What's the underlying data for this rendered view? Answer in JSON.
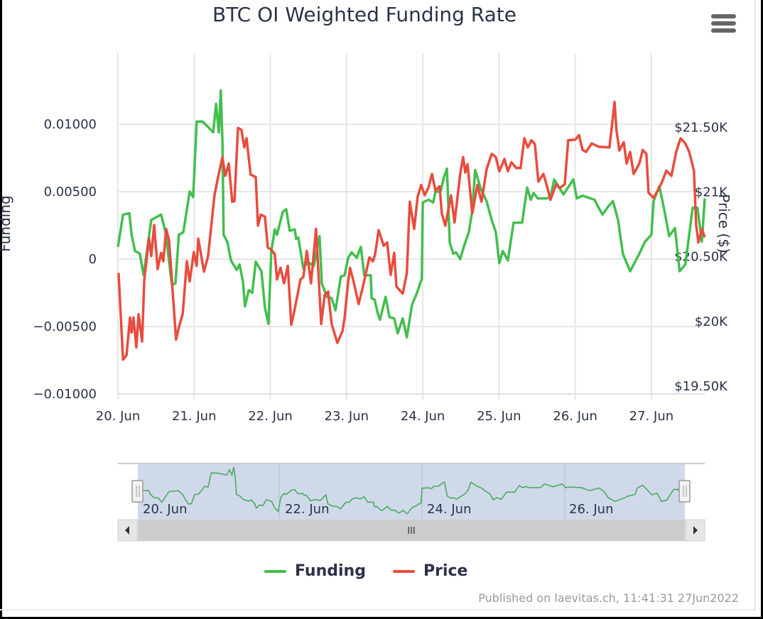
{
  "title": "BTC OI Weighted Funding Rate",
  "menu_icon": "hamburger-menu-icon",
  "credits": "Published on laevitas.ch, 11:41:31 27Jun2022",
  "legend": [
    {
      "label": "Funding",
      "color": "#43be4f"
    },
    {
      "label": "Price",
      "color": "#e84c3d"
    }
  ],
  "navigator": {
    "labels": [
      "20. Jun",
      "22. Jun",
      "24. Jun",
      "26. Jun"
    ],
    "scroll_grip": "III"
  },
  "chart_data": {
    "type": "line",
    "title": "BTC OI Weighted Funding Rate",
    "x_unit": "hours since 20 Jun 00:00",
    "x_tick_labels": [
      "20. Jun",
      "21. Jun",
      "22. Jun",
      "23. Jun",
      "24. Jun",
      "25. Jun",
      "26. Jun",
      "27. Jun"
    ],
    "xlim": [
      0,
      184.8
    ],
    "y_left": {
      "label": "Funding",
      "ticks": [
        0.01,
        0.005,
        0,
        -0.005,
        -0.01
      ],
      "tick_labels": [
        "0.01000",
        "0.00500",
        "0",
        "−0.00500",
        "−0.01000"
      ],
      "ylim": [
        -0.01,
        0.01526
      ]
    },
    "y_right": {
      "label": "Price ($)",
      "ticks": [
        21500,
        21000,
        20500,
        20000,
        19500
      ],
      "tick_labels": [
        "$21.50K",
        "$21K",
        "$20.50K",
        "$20K",
        "$19.50K"
      ],
      "ylim": [
        19500,
        22132
      ]
    },
    "grid": true,
    "legend_position": "bottom-center",
    "series": [
      {
        "name": "Funding",
        "axis": "left",
        "color": "#43be4f",
        "x": [
          0,
          1.6,
          3.6,
          4.3,
          5.4,
          6.9,
          8.1,
          10.5,
          13.6,
          15.0,
          17.0,
          18.1,
          19.2,
          20.6,
          22.6,
          23.7,
          24.8,
          26.6,
          28.4,
          30.0,
          30.9,
          31.8,
          32.4,
          32.9,
          33.3,
          34.4,
          35.6,
          37.4,
          38.3,
          39.4,
          40.0,
          41.2,
          42.3,
          43.4,
          45.2,
          46.3,
          47.4,
          48.3,
          49.4,
          50.1,
          51.9,
          53.0,
          54.1,
          55.7,
          56.1,
          56.8,
          58.4,
          59.7,
          61.7,
          63.5,
          64.2,
          65.8,
          67.3,
          68.5,
          70.2,
          71.4,
          72.5,
          73.6,
          75.2,
          76.5,
          77.6,
          79.6,
          79.9,
          80.8,
          81.9,
          82.5,
          84.3,
          85.5,
          87.0,
          88.1,
          89.7,
          91.0,
          92.6,
          94.2,
          95.3,
          95.7,
          96.0,
          97.8,
          99.3,
          100.0,
          101.6,
          102.7,
          103.6,
          104.5,
          105.6,
          106.5,
          107.8,
          108.9,
          110.5,
          111.6,
          112.5,
          114.3,
          116.1,
          117.7,
          119.0,
          120.1,
          121.2,
          122.8,
          124.6,
          127.3,
          128.0,
          128.9,
          130.0,
          130.9,
          132.2,
          135.1,
          136.2,
          137.4,
          140.3,
          143.4,
          144.5,
          146.3,
          150.1,
          151.4,
          152.6,
          154.1,
          155.9,
          157.5,
          159.0,
          161.3,
          164.2,
          166.0,
          168.0,
          168.7,
          170.5,
          172.0,
          173.6,
          175.4,
          176.9,
          178.7,
          181.0,
          182.5,
          183.9,
          184.8
        ],
        "values": [
          0.0009,
          0.0033,
          0.0034,
          0.0018,
          0.0006,
          0.0004,
          -0.0012,
          0.0029,
          0.0033,
          0.002,
          -0.0019,
          -0.0018,
          0.0018,
          0.002,
          0.005,
          0.0046,
          0.0102,
          0.0102,
          0.0098,
          0.0094,
          0.0115,
          0.0094,
          0.0125,
          0.0087,
          0.0018,
          0.0013,
          -0.0001,
          -0.0008,
          -0.0004,
          -0.0017,
          -0.0035,
          -0.0023,
          -0.0025,
          -0.0002,
          -0.0009,
          -0.0036,
          -0.0048,
          0.0006,
          0.0022,
          0.0018,
          0.0035,
          0.0037,
          0.0021,
          0.0022,
          0.0015,
          0.0016,
          -0.0007,
          -0.0002,
          -0.0005,
          0.0017,
          -0.0018,
          -0.0028,
          -0.0029,
          -0.0038,
          -0.0013,
          -0.0012,
          0.0001,
          0.0005,
          0.0001,
          0.0009,
          -0.0012,
          -0.0012,
          -0.0029,
          -0.003,
          -0.0041,
          -0.0045,
          -0.0028,
          -0.0043,
          -0.0044,
          -0.0055,
          -0.0044,
          -0.0058,
          -0.0034,
          -0.0025,
          -0.0017,
          -0.0015,
          0.0042,
          0.0044,
          0.0042,
          0.005,
          0.005,
          0.0061,
          0.0067,
          0.0012,
          0.0004,
          0.0005,
          0.0,
          0.0009,
          0.002,
          0.0036,
          0.0066,
          0.0052,
          0.0043,
          0.0029,
          0.002,
          -0.0003,
          0.0006,
          -0.0001,
          0.0027,
          0.0027,
          0.0039,
          0.0053,
          0.0044,
          0.0049,
          0.0045,
          0.0045,
          0.0046,
          0.0059,
          0.0048,
          0.0059,
          0.0045,
          0.0047,
          0.0044,
          0.0038,
          0.0033,
          0.0038,
          0.0043,
          0.0029,
          0.0004,
          -0.0009,
          0.0004,
          0.0013,
          0.0018,
          0.0043,
          0.0054,
          0.0037,
          0.0017,
          0.0023,
          -0.0009,
          -0.0004,
          0.0038,
          0.0038,
          0.0013,
          0.0045
        ]
      },
      {
        "name": "Price",
        "axis": "right",
        "color": "#e84c3d",
        "x": [
          0.2,
          1.6,
          2.7,
          3.8,
          4.3,
          4.9,
          5.8,
          6.5,
          7.6,
          8.3,
          9.8,
          10.5,
          11.4,
          12.5,
          13.6,
          14.3,
          15.2,
          16.1,
          17.2,
          18.3,
          19.2,
          20.4,
          21.7,
          22.6,
          23.9,
          24.8,
          25.3,
          27.1,
          28.4,
          30.4,
          31.5,
          32.9,
          33.8,
          34.9,
          36.0,
          36.7,
          37.8,
          38.9,
          39.8,
          40.5,
          41.8,
          43.4,
          44.1,
          45.0,
          46.3,
          47.2,
          48.3,
          49.4,
          50.1,
          51.2,
          52.3,
          53.5,
          54.6,
          55.7,
          57.5,
          58.4,
          59.5,
          60.8,
          62.4,
          64.0,
          65.1,
          66.2,
          67.3,
          69.1,
          70.7,
          71.4,
          72.5,
          73.1,
          74.3,
          75.8,
          77.0,
          79.2,
          80.3,
          81.0,
          82.1,
          83.7,
          84.8,
          85.9,
          87.0,
          87.7,
          89.7,
          91.0,
          91.9,
          93.3,
          94.4,
          95.5,
          96.6,
          97.8,
          98.9,
          100.0,
          101.3,
          102.0,
          103.1,
          104.9,
          106.0,
          107.8,
          108.7,
          109.4,
          110.1,
          111.6,
          113.2,
          114.5,
          116.1,
          117.7,
          119.0,
          120.1,
          121.7,
          122.8,
          123.9,
          125.5,
          126.8,
          128.0,
          129.1,
          130.2,
          131.3,
          132.4,
          134.0,
          135.1,
          136.2,
          138.0,
          139.1,
          140.7,
          141.8,
          144.1,
          145.2,
          146.3,
          147.4,
          149.2,
          151.4,
          154.8,
          156.4,
          157.0,
          157.9,
          159.3,
          160.2,
          161.3,
          162.4,
          164.2,
          165.3,
          166.4,
          167.1,
          168.7,
          170.2,
          171.4,
          172.7,
          174.3,
          175.8,
          177.2,
          178.7,
          179.9,
          181.4,
          182.1,
          182.8,
          183.9,
          184.8
        ],
        "values": [
          20435,
          19765,
          19800,
          20090,
          19975,
          20090,
          19860,
          20115,
          19905,
          20385,
          20700,
          20565,
          20805,
          20465,
          20590,
          20525,
          20775,
          20685,
          20305,
          19920,
          20015,
          20120,
          20525,
          20370,
          20595,
          20490,
          20700,
          20445,
          20565,
          21035,
          21170,
          21330,
          21185,
          21280,
          20985,
          20990,
          21555,
          21540,
          21405,
          21475,
          21195,
          21175,
          20800,
          20885,
          20870,
          20630,
          20615,
          20580,
          20385,
          20475,
          20355,
          20490,
          20035,
          20160,
          20385,
          20405,
          20605,
          20355,
          20775,
          20040,
          20265,
          20290,
          20040,
          19895,
          19985,
          20090,
          20370,
          20475,
          20360,
          20195,
          20315,
          20555,
          20525,
          20580,
          20765,
          20645,
          20670,
          20420,
          20590,
          20330,
          20275,
          20435,
          20985,
          20775,
          21025,
          21115,
          21035,
          21095,
          21200,
          21070,
          21105,
          20895,
          20800,
          21035,
          20825,
          21200,
          21330,
          21210,
          21275,
          20895,
          21115,
          20985,
          21235,
          21355,
          21330,
          21220,
          21315,
          21220,
          21290,
          21245,
          21245,
          21475,
          21405,
          21460,
          21430,
          21140,
          21200,
          21105,
          21000,
          21120,
          21090,
          21120,
          21460,
          21465,
          21500,
          21385,
          21370,
          21435,
          21410,
          21405,
          21755,
          21540,
          21380,
          21445,
          21280,
          21370,
          21200,
          21280,
          21385,
          21355,
          21055,
          21015,
          21080,
          21140,
          21225,
          21185,
          21370,
          21475,
          21435,
          21370,
          21225,
          20805,
          20670,
          20775,
          20710
        ]
      }
    ]
  }
}
